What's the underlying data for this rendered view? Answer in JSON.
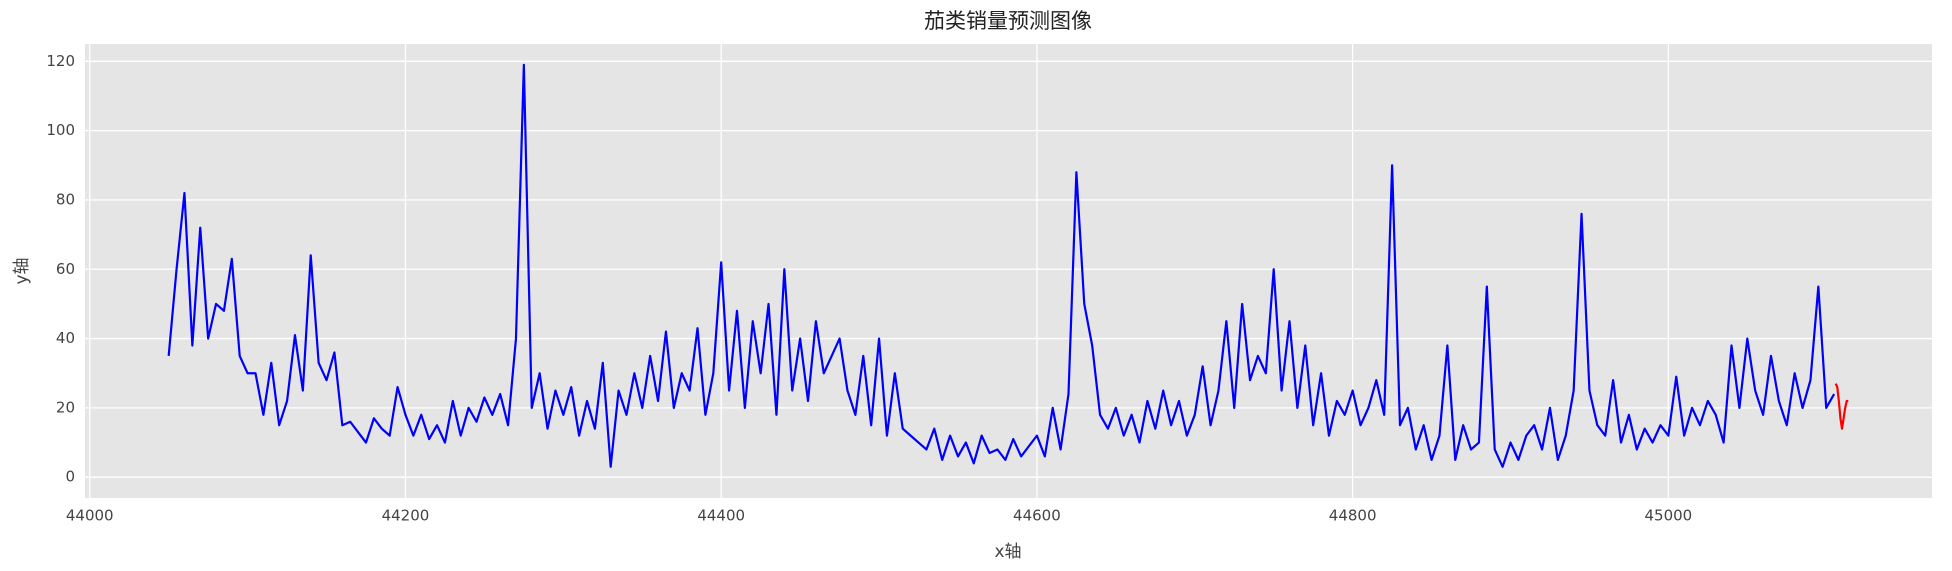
{
  "chart_data": {
    "type": "line",
    "title": "茄类销量预测图像",
    "xlabel": "x轴",
    "ylabel": "y轴",
    "xlim": [
      43997,
      45167
    ],
    "ylim": [
      -6,
      125
    ],
    "xticks": [
      44000,
      44200,
      44400,
      44600,
      44800,
      45000
    ],
    "yticks": [
      0,
      20,
      40,
      60,
      80,
      100,
      120
    ],
    "grid": true,
    "series": [
      {
        "color": "#0000ff",
        "x": [
          44050,
          44055,
          44060,
          44065,
          44070,
          44075,
          44080,
          44085,
          44090,
          44095,
          44100,
          44105,
          44110,
          44115,
          44120,
          44125,
          44130,
          44135,
          44140,
          44145,
          44150,
          44155,
          44160,
          44165,
          44170,
          44175,
          44180,
          44185,
          44190,
          44195,
          44200,
          44205,
          44210,
          44215,
          44220,
          44225,
          44230,
          44235,
          44240,
          44245,
          44250,
          44255,
          44260,
          44265,
          44270,
          44275,
          44280,
          44285,
          44290,
          44295,
          44300,
          44305,
          44310,
          44315,
          44320,
          44325,
          44330,
          44335,
          44340,
          44345,
          44350,
          44355,
          44360,
          44365,
          44370,
          44375,
          44380,
          44385,
          44390,
          44395,
          44400,
          44405,
          44410,
          44415,
          44420,
          44425,
          44430,
          44435,
          44440,
          44445,
          44450,
          44455,
          44460,
          44465,
          44470,
          44475,
          44480,
          44485,
          44490,
          44495,
          44500,
          44505,
          44510,
          44515,
          44520,
          44525,
          44530,
          44535,
          44540,
          44545,
          44550,
          44555,
          44560,
          44565,
          44570,
          44575,
          44580,
          44585,
          44590,
          44595,
          44600,
          44605,
          44610,
          44615,
          44620,
          44625,
          44630,
          44635,
          44640,
          44645,
          44650,
          44655,
          44660,
          44665,
          44670,
          44675,
          44680,
          44685,
          44690,
          44695,
          44700,
          44705,
          44710,
          44715,
          44720,
          44725,
          44730,
          44735,
          44740,
          44745,
          44750,
          44755,
          44760,
          44765,
          44770,
          44775,
          44780,
          44785,
          44790,
          44795,
          44800,
          44805,
          44810,
          44815,
          44820,
          44825,
          44830,
          44835,
          44840,
          44845,
          44850,
          44855,
          44860,
          44865,
          44870,
          44875,
          44880,
          44885,
          44890,
          44895,
          44900,
          44905,
          44910,
          44915,
          44920,
          44925,
          44930,
          44935,
          44940,
          44945,
          44950,
          44955,
          44960,
          44965,
          44970,
          44975,
          44980,
          44985,
          44990,
          44995,
          45000,
          45005,
          45010,
          45015,
          45020,
          45025,
          45030,
          45035,
          45040,
          45045,
          45050,
          45055,
          45060,
          45065,
          45070,
          45075,
          45080,
          45085,
          45090,
          45095,
          45100,
          45105
        ],
        "values": [
          35,
          60,
          82,
          38,
          72,
          40,
          50,
          48,
          63,
          35,
          30,
          30,
          18,
          33,
          15,
          22,
          41,
          25,
          64,
          33,
          28,
          36,
          15,
          16,
          13,
          10,
          17,
          14,
          12,
          26,
          18,
          12,
          18,
          11,
          15,
          10,
          22,
          12,
          20,
          16,
          23,
          18,
          24,
          15,
          40,
          119,
          20,
          30,
          14,
          25,
          18,
          26,
          12,
          22,
          14,
          33,
          3,
          25,
          18,
          30,
          20,
          35,
          22,
          42,
          20,
          30,
          25,
          43,
          18,
          30,
          62,
          25,
          48,
          20,
          45,
          30,
          50,
          18,
          60,
          25,
          40,
          22,
          45,
          30,
          35,
          40,
          25,
          18,
          35,
          15,
          40,
          12,
          30,
          14,
          12,
          10,
          8,
          14,
          5,
          12,
          6,
          10,
          4,
          12,
          7,
          8,
          5,
          11,
          6,
          9,
          12,
          6,
          20,
          8,
          24,
          88,
          50,
          38,
          18,
          14,
          20,
          12,
          18,
          10,
          22,
          14,
          25,
          15,
          22,
          12,
          18,
          32,
          15,
          25,
          45,
          20,
          50,
          28,
          35,
          30,
          60,
          25,
          45,
          20,
          38,
          15,
          30,
          12,
          22,
          18,
          25,
          15,
          20,
          28,
          18,
          90,
          15,
          20,
          8,
          15,
          5,
          12,
          38,
          5,
          15,
          8,
          10,
          55,
          8,
          3,
          10,
          5,
          12,
          15,
          8,
          20,
          5,
          12,
          25,
          76,
          25,
          15,
          12,
          28,
          10,
          18,
          8,
          14,
          10,
          15,
          12,
          29,
          12,
          20,
          15,
          22,
          18,
          10,
          38,
          20,
          40,
          25,
          18,
          35,
          22,
          15,
          30,
          20,
          28,
          55,
          20,
          24
        ]
      },
      {
        "color": "#ff0000",
        "x": [
          45106,
          45107,
          45108,
          45109,
          45110,
          45111,
          45112,
          45113,
          45114
        ],
        "values": [
          27,
          26,
          22,
          17,
          14,
          17,
          20,
          22,
          22
        ]
      }
    ]
  }
}
